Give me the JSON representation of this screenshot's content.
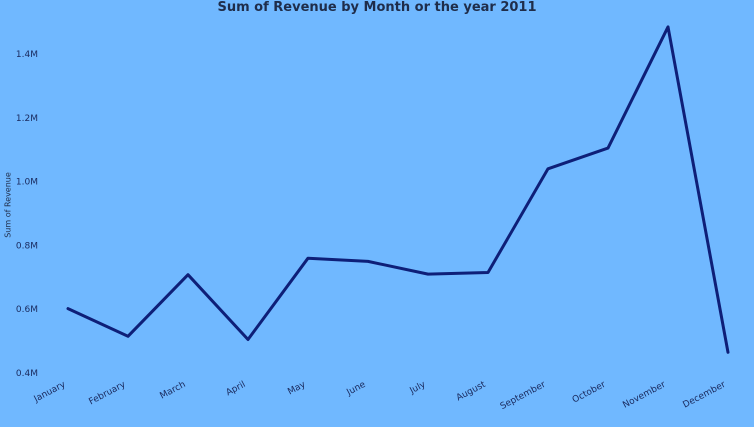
{
  "chart_data": {
    "type": "line",
    "title": "Sum of Revenue by Month or the year 2011",
    "xlabel": "",
    "ylabel": "Sum of Revenue",
    "categories": [
      "January",
      "February",
      "March",
      "April",
      "May",
      "June",
      "July",
      "August",
      "September",
      "October",
      "November",
      "December"
    ],
    "series": [
      {
        "values": [
          0.602,
          0.515,
          0.708,
          0.505,
          0.76,
          0.75,
          0.71,
          0.715,
          1.04,
          1.105,
          1.485,
          0.465
        ]
      }
    ],
    "ylim": [
      0.4,
      1.55
    ],
    "yticks": [
      0.4,
      0.6,
      0.8,
      1.0,
      1.2,
      1.4
    ],
    "ytick_labels": [
      "0.4M",
      "0.6M",
      "0.8M",
      "1.0M",
      "1.2M",
      "1.4M"
    ],
    "grid": false,
    "legend": "none",
    "colors": {
      "line": "#0e1f78",
      "background": "#70b8ff",
      "text": "#1a2a5e"
    }
  }
}
